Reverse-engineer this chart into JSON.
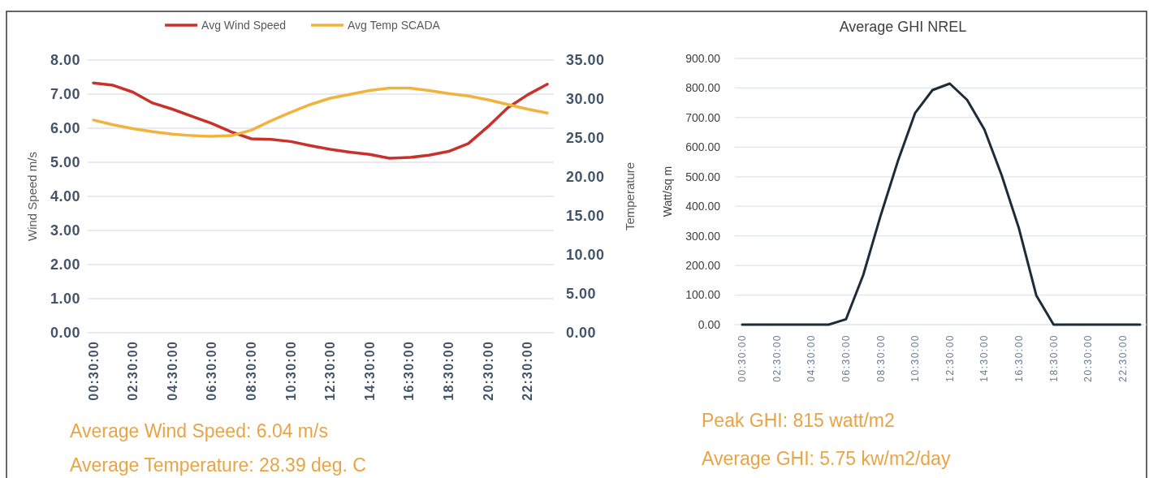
{
  "chart_data": [
    {
      "type": "line",
      "categories": [
        "00:30:00",
        null,
        "02:30:00",
        null,
        "04:30:00",
        null,
        "06:30:00",
        null,
        "08:30:00",
        null,
        "10:30:00",
        null,
        "12:30:00",
        null,
        "14:30:00",
        null,
        "16:30:00",
        null,
        "18:30:00",
        null,
        "20:30:00",
        null,
        "22:30:00",
        null
      ],
      "series": [
        {
          "name": "Avg Wind Speed",
          "color": "#c8322a",
          "values": [
            7.33,
            7.26,
            7.06,
            6.74,
            6.56,
            6.35,
            6.14,
            5.89,
            5.69,
            5.67,
            5.61,
            5.49,
            5.38,
            5.3,
            5.23,
            5.12,
            5.14,
            5.21,
            5.32,
            5.55,
            6.05,
            6.6,
            6.98,
            7.29
          ]
        },
        {
          "name": "Avg Temp SCADA",
          "color": "#f2b33d",
          "axis": "y2",
          "values": [
            27.3,
            26.7,
            26.2,
            25.8,
            25.5,
            25.3,
            25.2,
            25.3,
            26.0,
            27.2,
            28.3,
            29.3,
            30.1,
            30.6,
            31.1,
            31.4,
            31.4,
            31.1,
            30.7,
            30.4,
            29.9,
            29.3,
            28.7,
            28.2
          ]
        }
      ],
      "ylabel": "Wind Speed m/s",
      "y2label": "Temperature",
      "ylim": [
        0,
        8
      ],
      "yticks": [
        {
          "value": 0,
          "label": "0.00"
        },
        {
          "value": 1,
          "label": "1.00"
        },
        {
          "value": 2,
          "label": "2.00"
        },
        {
          "value": 3,
          "label": "3.00"
        },
        {
          "value": 4,
          "label": "4.00"
        },
        {
          "value": 5,
          "label": "5.00"
        },
        {
          "value": 6,
          "label": "6.00"
        },
        {
          "value": 7,
          "label": "7.00"
        },
        {
          "value": 8,
          "label": "8.00"
        }
      ],
      "y2lim": [
        0,
        35
      ],
      "y2ticks": [
        {
          "value": 0,
          "label": "0.00"
        },
        {
          "value": 5,
          "label": "5.00"
        },
        {
          "value": 10,
          "label": "10.00"
        },
        {
          "value": 15,
          "label": "15.00"
        },
        {
          "value": 20,
          "label": "20.00"
        },
        {
          "value": 25,
          "label": "25.00"
        },
        {
          "value": 30,
          "label": "30.00"
        },
        {
          "value": 35,
          "label": "35.00"
        }
      ],
      "grid": "y",
      "legend": "top",
      "annotations": [
        "Average Wind Speed: 6.04 m/s",
        "Average Temperature: 28.39 deg. C"
      ]
    },
    {
      "type": "line",
      "title": "Average GHI NREL",
      "categories": [
        "00:30:00",
        null,
        "02:30:00",
        null,
        "04:30:00",
        null,
        "06:30:00",
        null,
        "08:30:00",
        null,
        "10:30:00",
        null,
        "12:30:00",
        null,
        "14:30:00",
        null,
        "16:30:00",
        null,
        "18:30:00",
        null,
        "20:30:00",
        null,
        "22:30:00",
        null
      ],
      "series": [
        {
          "color": "#1e2b3a",
          "values": [
            0,
            0,
            0,
            0,
            0,
            0,
            18,
            168,
            368,
            553,
            716,
            793,
            815,
            760,
            660,
            505,
            325,
            99,
            0,
            0,
            0,
            0,
            0,
            0
          ]
        }
      ],
      "ylabel": "Watt/sq m",
      "ylim": [
        0,
        900
      ],
      "yticks": [
        {
          "value": 0,
          "label": "0.00"
        },
        {
          "value": 100,
          "label": "100.00"
        },
        {
          "value": 200,
          "label": "200.00"
        },
        {
          "value": 300,
          "label": "300.00"
        },
        {
          "value": 400,
          "label": "400.00"
        },
        {
          "value": 500,
          "label": "500.00"
        },
        {
          "value": 600,
          "label": "600.00"
        },
        {
          "value": 700,
          "label": "700.00"
        },
        {
          "value": 800,
          "label": "800.00"
        },
        {
          "value": 900,
          "label": "900.00"
        }
      ],
      "grid": "y",
      "annotations": [
        "Peak GHI: 815 watt/m2",
        "Average GHI: 5.75 kw/m2/day"
      ]
    }
  ]
}
